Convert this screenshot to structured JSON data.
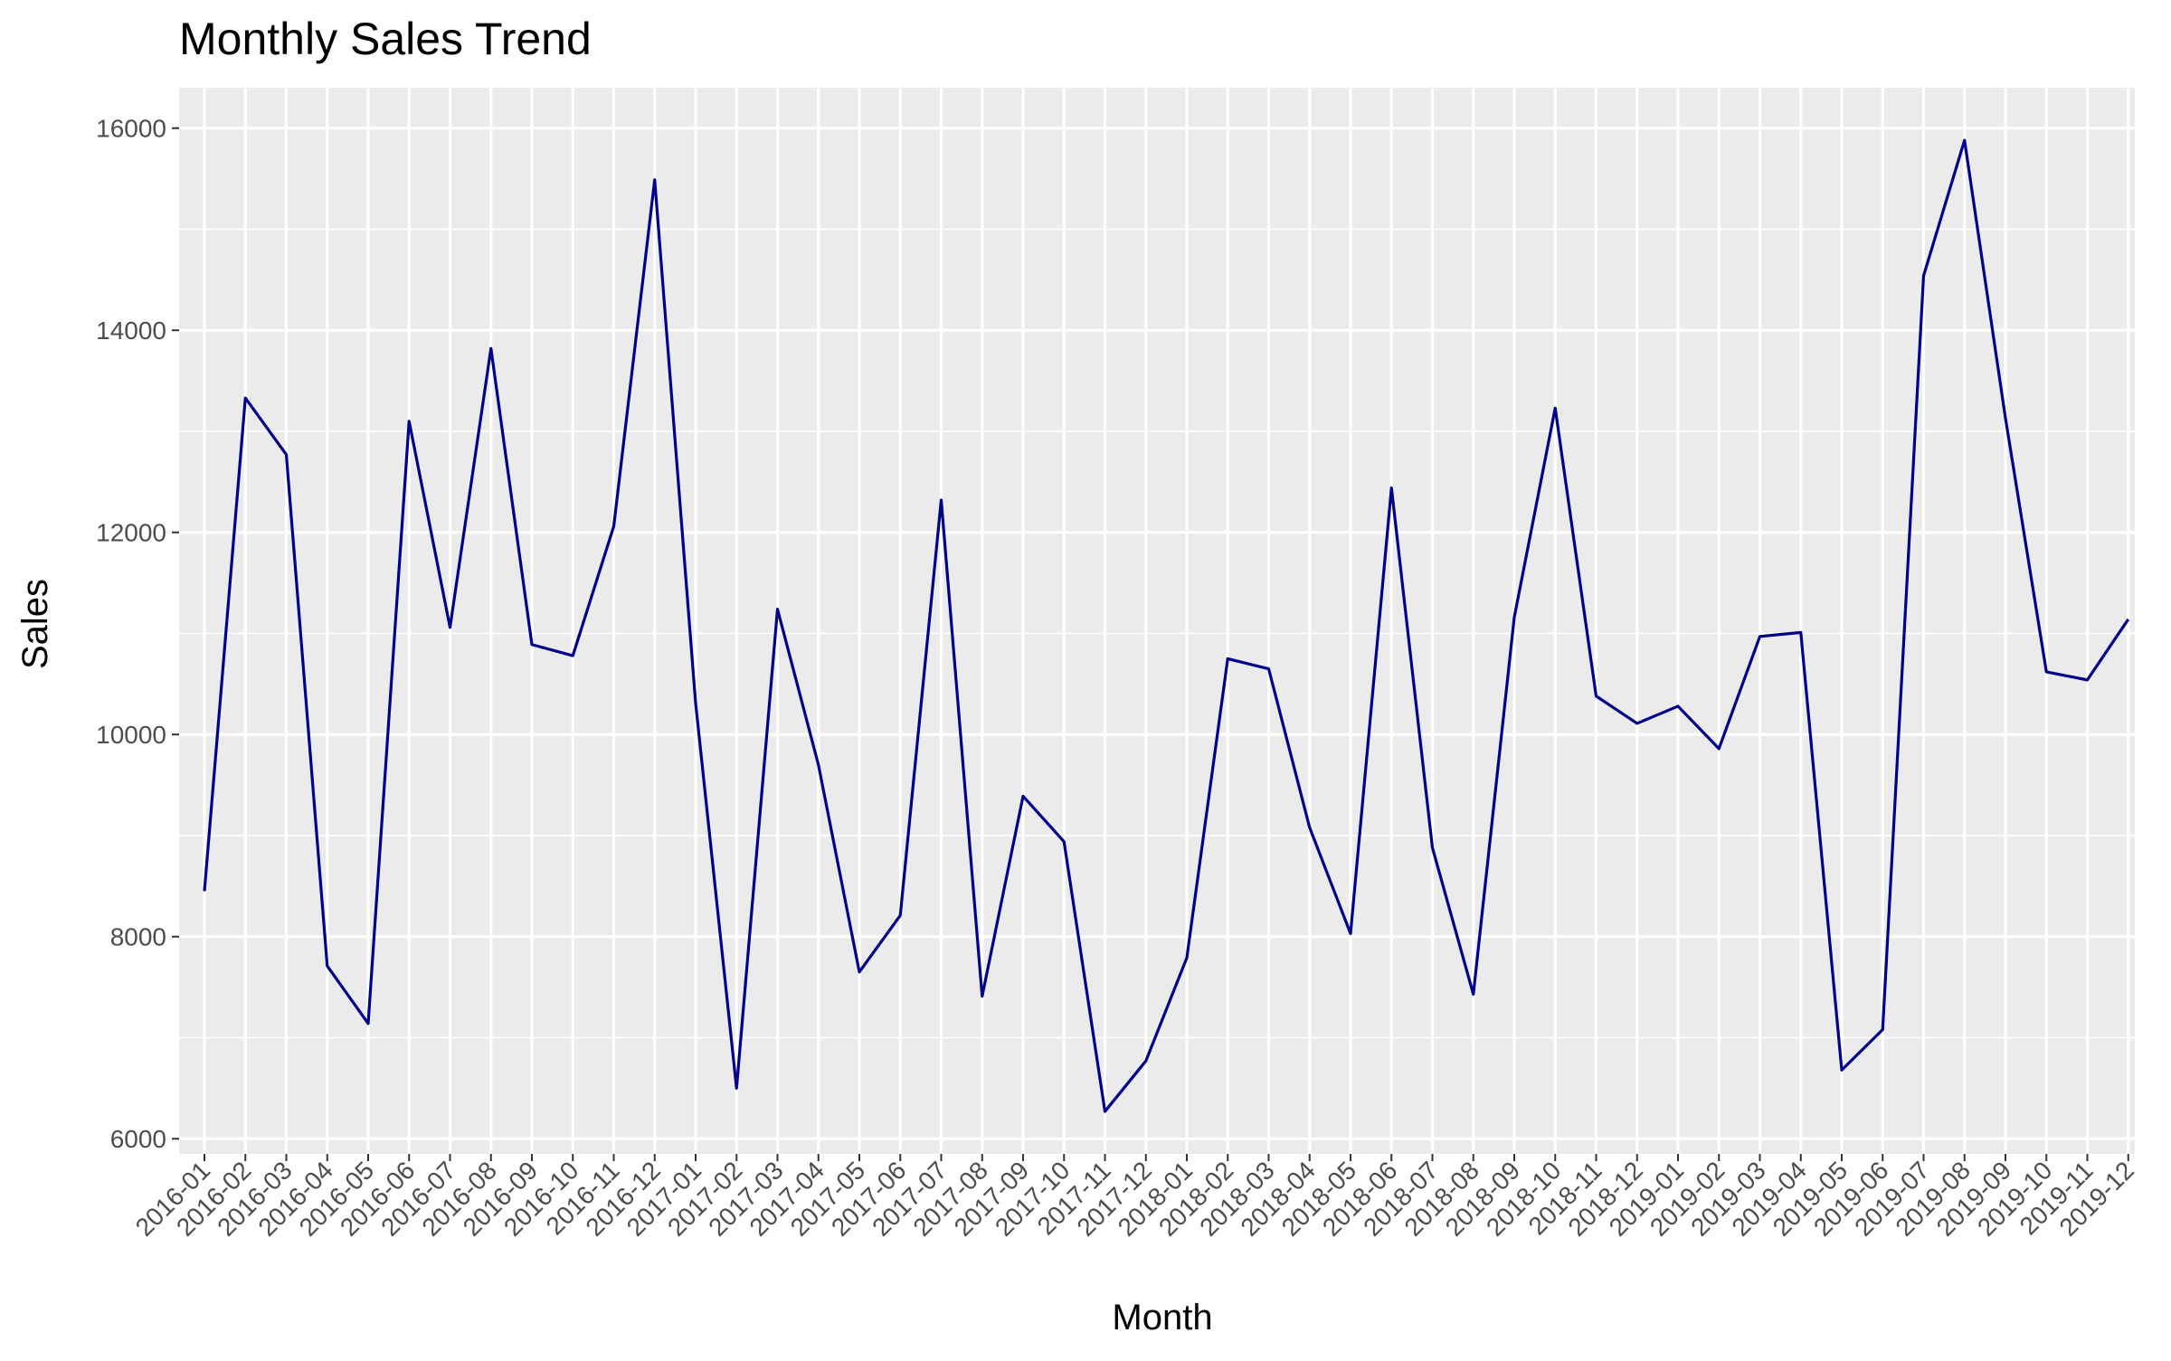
{
  "chart_data": {
    "type": "line",
    "title": "Monthly Sales Trend",
    "xlabel": "Month",
    "ylabel": "Sales",
    "ylim": [
      5850,
      16400
    ],
    "yticks": [
      6000,
      8000,
      10000,
      12000,
      14000,
      16000
    ],
    "grid": true,
    "legend": "none",
    "colors": {
      "line": "#00008b",
      "panel": "#ebebeb",
      "grid": "#ffffff",
      "tick": "#333333"
    },
    "x": [
      "2016-01",
      "2016-02",
      "2016-03",
      "2016-04",
      "2016-05",
      "2016-06",
      "2016-07",
      "2016-08",
      "2016-09",
      "2016-10",
      "2016-11",
      "2016-12",
      "2017-01",
      "2017-02",
      "2017-03",
      "2017-04",
      "2017-05",
      "2017-06",
      "2017-07",
      "2017-08",
      "2017-09",
      "2017-10",
      "2017-11",
      "2017-12",
      "2018-01",
      "2018-02",
      "2018-03",
      "2018-04",
      "2018-05",
      "2018-06",
      "2018-07",
      "2018-08",
      "2018-09",
      "2018-10",
      "2018-11",
      "2018-12",
      "2019-01",
      "2019-02",
      "2019-03",
      "2019-04",
      "2019-05",
      "2019-06",
      "2019-07",
      "2019-08",
      "2019-09",
      "2019-10",
      "2019-11",
      "2019-12"
    ],
    "series": [
      {
        "values": [
          8450,
          13330,
          12770,
          7710,
          7140,
          13100,
          11060,
          13820,
          10890,
          10780,
          12060,
          15490,
          10310,
          6500,
          11240,
          9700,
          7650,
          8210,
          12320,
          7410,
          9390,
          8940,
          6270,
          6770,
          7790,
          10750,
          10650,
          9080,
          8030,
          12440,
          8880,
          7430,
          11160,
          13230,
          10380,
          10110,
          10280,
          9860,
          10970,
          11010,
          6680,
          7080,
          14540,
          15880,
          13130,
          10620,
          10540,
          11140
        ]
      }
    ]
  }
}
